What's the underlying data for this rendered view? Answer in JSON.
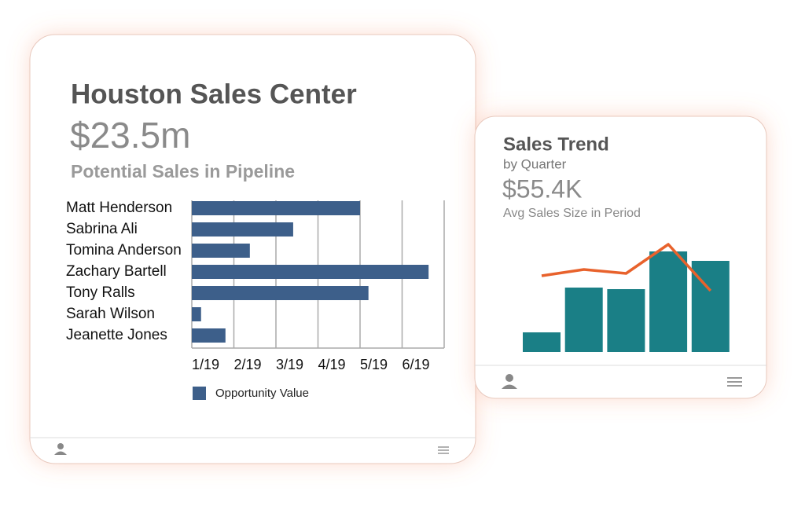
{
  "cards": [
    {
      "title": "Houston Sales Center",
      "value": "$23.5m",
      "caption": "Potential Sales in Pipeline",
      "chart": {
        "type": "hbar",
        "categories": [
          "Matt Henderson",
          "Sabrina Ali",
          "Tomina Anderson",
          "Zachary Bartell",
          "Tony Ralls",
          "Sarah Wilson",
          "Jeanette Jones"
        ],
        "series": [
          {
            "name": "Opportunity Value",
            "color": "#3d5f8a",
            "values": [
              4.0,
              2.41,
              1.38,
              5.63,
              4.2,
              0.22,
              0.8
            ]
          }
        ],
        "xlim": [
          0,
          6
        ],
        "xticks": [
          {
            "value": 0,
            "label": "1/19"
          },
          {
            "value": 1,
            "label": "2/19"
          },
          {
            "value": 2,
            "label": "3/19"
          },
          {
            "value": 3,
            "label": "4/19"
          },
          {
            "value": 4,
            "label": "5/19"
          },
          {
            "value": 5,
            "label": "6/19"
          }
        ],
        "grid": true
      }
    },
    {
      "title": "Sales Trend",
      "subtitle": "by Quarter",
      "value": "$55.4K",
      "caption": "Avg Sales Size in Period",
      "chart": {
        "type": "combo",
        "categories": [
          null,
          null,
          null,
          null,
          null
        ],
        "series": [
          {
            "type": "bar",
            "color": "#1a7f86",
            "values": [
              25,
              82,
              80,
              128,
              116
            ]
          },
          {
            "type": "line",
            "color": "#e8622c",
            "values": [
              97,
              105,
              100,
              137,
              78
            ]
          }
        ],
        "ylim": [
          0,
          140
        ]
      }
    }
  ]
}
